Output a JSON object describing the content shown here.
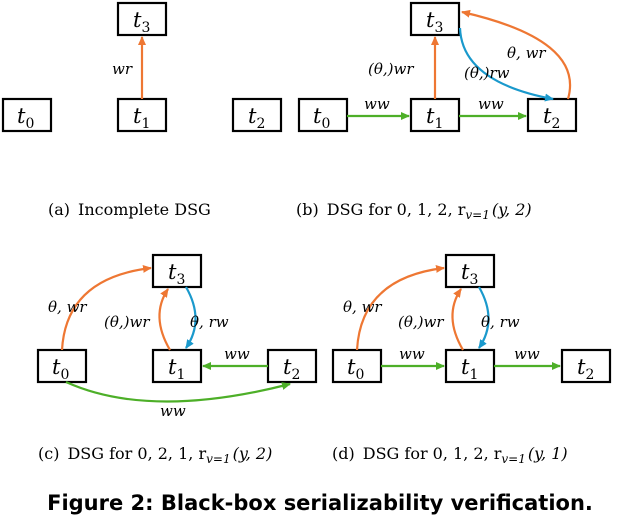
{
  "colors": {
    "wr": "#ee7733",
    "ww": "#4daf28",
    "rw": "#1a99cc",
    "node_stroke": "#000000"
  },
  "panels": [
    {
      "caption": {
        "prefix": "(a)",
        "text": "Incomplete DSG"
      },
      "nodes": [
        {
          "id": "t3",
          "label": "t",
          "sub": "3"
        },
        {
          "id": "t0",
          "label": "t",
          "sub": "0"
        },
        {
          "id": "t1",
          "label": "t",
          "sub": "1"
        }
      ],
      "edges": [
        {
          "from": "t1",
          "to": "t3",
          "type": "wr",
          "label": "wr"
        }
      ]
    },
    {
      "caption": {
        "prefix": "(b)",
        "text": "DSG for 0, 1, 2, r",
        "sub": "v=1",
        "args": "(y, 2)"
      },
      "nodes": [
        {
          "id": "t2a",
          "label": "t",
          "sub": "2"
        },
        {
          "id": "t3",
          "label": "t",
          "sub": "3"
        },
        {
          "id": "t0",
          "label": "t",
          "sub": "0"
        },
        {
          "id": "t1",
          "label": "t",
          "sub": "1"
        },
        {
          "id": "t2",
          "label": "t",
          "sub": "2"
        }
      ],
      "edges": [
        {
          "from": "t1",
          "to": "t3",
          "type": "wr",
          "label": "(θ,)wr"
        },
        {
          "from": "t0",
          "to": "t1",
          "type": "ww",
          "label": "ww"
        },
        {
          "from": "t1",
          "to": "t2",
          "type": "ww",
          "label": "ww"
        },
        {
          "from": "t3",
          "to": "t2",
          "type": "rw",
          "label": "(θ,)rw"
        },
        {
          "from": "t2",
          "to": "t3",
          "type": "wr",
          "label": "θ, wr"
        }
      ]
    },
    {
      "caption": {
        "prefix": "(c)",
        "text": "DSG for 0, 2, 1, r",
        "sub": "v=1",
        "args": "(y, 2)"
      },
      "nodes": [
        {
          "id": "t3",
          "label": "t",
          "sub": "3"
        },
        {
          "id": "t0",
          "label": "t",
          "sub": "0"
        },
        {
          "id": "t1",
          "label": "t",
          "sub": "1"
        },
        {
          "id": "t2",
          "label": "t",
          "sub": "2"
        }
      ],
      "edges": [
        {
          "from": "t0",
          "to": "t3",
          "type": "wr",
          "label": "θ, wr"
        },
        {
          "from": "t1",
          "to": "t3",
          "type": "wr",
          "label": "(θ,)wr"
        },
        {
          "from": "t3",
          "to": "t1",
          "type": "rw",
          "label": "θ, rw"
        },
        {
          "from": "t2",
          "to": "t1",
          "type": "ww",
          "label": "ww"
        },
        {
          "from": "t0",
          "to": "t2",
          "type": "ww",
          "label": "ww"
        }
      ]
    },
    {
      "caption": {
        "prefix": "(d)",
        "text": "DSG for 0, 1, 2, r",
        "sub": "v=1",
        "args": "(y, 1)"
      },
      "nodes": [
        {
          "id": "t3",
          "label": "t",
          "sub": "3"
        },
        {
          "id": "t0",
          "label": "t",
          "sub": "0"
        },
        {
          "id": "t1",
          "label": "t",
          "sub": "1"
        },
        {
          "id": "t2",
          "label": "t",
          "sub": "2"
        }
      ],
      "edges": [
        {
          "from": "t0",
          "to": "t3",
          "type": "wr",
          "label": "θ, wr"
        },
        {
          "from": "t1",
          "to": "t3",
          "type": "wr",
          "label": "(θ,)wr"
        },
        {
          "from": "t3",
          "to": "t1",
          "type": "rw",
          "label": "θ, rw"
        },
        {
          "from": "t0",
          "to": "t1",
          "type": "ww",
          "label": "ww"
        },
        {
          "from": "t1",
          "to": "t2",
          "type": "ww",
          "label": "ww"
        }
      ]
    }
  ],
  "figure_caption": "Figure 2: Black-box serializability verification."
}
